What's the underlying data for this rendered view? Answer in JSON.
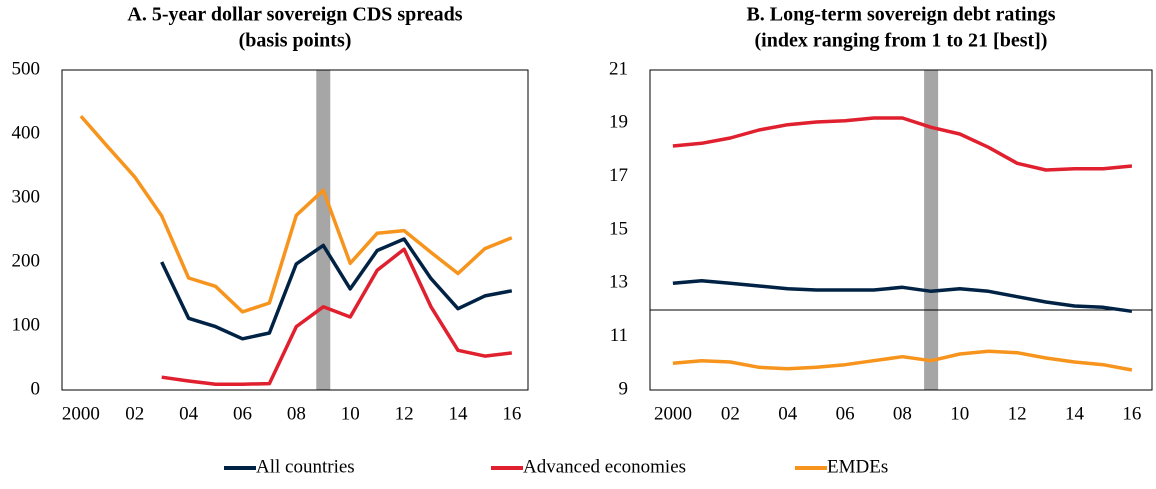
{
  "chart_data": [
    {
      "type": "line",
      "title": "A. 5-year dollar sovereign CDS spreads",
      "subtitle": "(basis points)",
      "x": [
        2000,
        2001,
        2002,
        2003,
        2004,
        2005,
        2006,
        2007,
        2008,
        2009,
        2010,
        2011,
        2012,
        2013,
        2014,
        2015,
        2016
      ],
      "xlim": [
        1999.3,
        2016.6
      ],
      "xticks": [
        2000,
        {
          "value": 2002,
          "label": "02"
        },
        {
          "value": 2004,
          "label": "04"
        },
        {
          "value": 2006,
          "label": "06"
        },
        {
          "value": 2008,
          "label": "08"
        },
        {
          "value": 2010,
          "label": "10"
        },
        {
          "value": 2012,
          "label": "12"
        },
        {
          "value": 2014,
          "label": "14"
        },
        {
          "value": 2016,
          "label": "16"
        }
      ],
      "ylim": [
        0,
        500
      ],
      "yticks": [
        0,
        100,
        200,
        300,
        400,
        500
      ],
      "highlight_x": 2009,
      "series": [
        {
          "name": "All countries",
          "color": "#002345",
          "values": [
            null,
            null,
            null,
            200,
            112,
            99,
            80,
            89,
            197,
            226,
            158,
            218,
            236,
            174,
            127,
            147,
            155
          ]
        },
        {
          "name": "Advanced economies",
          "color": "#e0202e",
          "values": [
            null,
            null,
            null,
            20,
            14,
            9,
            9,
            10,
            99,
            130,
            114,
            187,
            220,
            130,
            62,
            53,
            58
          ]
        },
        {
          "name": "EMDEs",
          "color": "#f7941d",
          "values": [
            428,
            380,
            333,
            272,
            175,
            162,
            122,
            136,
            273,
            312,
            198,
            245,
            249,
            215,
            182,
            221,
            238
          ]
        }
      ]
    },
    {
      "type": "line",
      "title": "B. Long-term sovereign debt ratings",
      "subtitle": "(index ranging from 1 to 21 [best])",
      "x": [
        2000,
        2001,
        2002,
        2003,
        2004,
        2005,
        2006,
        2007,
        2008,
        2009,
        2010,
        2011,
        2012,
        2013,
        2014,
        2015,
        2016
      ],
      "xlim": [
        1999.2,
        2016.7
      ],
      "xticks": [
        2000,
        {
          "value": 2002,
          "label": "02"
        },
        {
          "value": 2004,
          "label": "04"
        },
        {
          "value": 2006,
          "label": "06"
        },
        {
          "value": 2008,
          "label": "08"
        },
        {
          "value": 2010,
          "label": "10"
        },
        {
          "value": 2012,
          "label": "12"
        },
        {
          "value": 2014,
          "label": "14"
        },
        {
          "value": 2016,
          "label": "16"
        }
      ],
      "ylim": [
        9,
        21
      ],
      "yticks": [
        9,
        11,
        13,
        15,
        17,
        19,
        21
      ],
      "highlight_x": 2009,
      "hline": 12,
      "series": [
        {
          "color": "#002345",
          "values": [
            13.0,
            13.1,
            13.0,
            12.9,
            12.8,
            12.75,
            12.75,
            12.75,
            12.85,
            12.7,
            12.8,
            12.7,
            12.5,
            12.3,
            12.15,
            12.1,
            11.95
          ]
        },
        {
          "color": "#e0202e",
          "values": [
            18.15,
            18.25,
            18.45,
            18.75,
            18.95,
            19.05,
            19.1,
            19.2,
            19.2,
            18.85,
            18.6,
            18.1,
            17.5,
            17.25,
            17.3,
            17.3,
            17.4
          ]
        },
        {
          "color": "#f7941d",
          "values": [
            10.0,
            10.1,
            10.05,
            9.85,
            9.8,
            9.85,
            9.95,
            10.1,
            10.25,
            10.1,
            10.35,
            10.45,
            10.4,
            10.2,
            10.05,
            9.95,
            9.75
          ]
        }
      ]
    }
  ]
}
